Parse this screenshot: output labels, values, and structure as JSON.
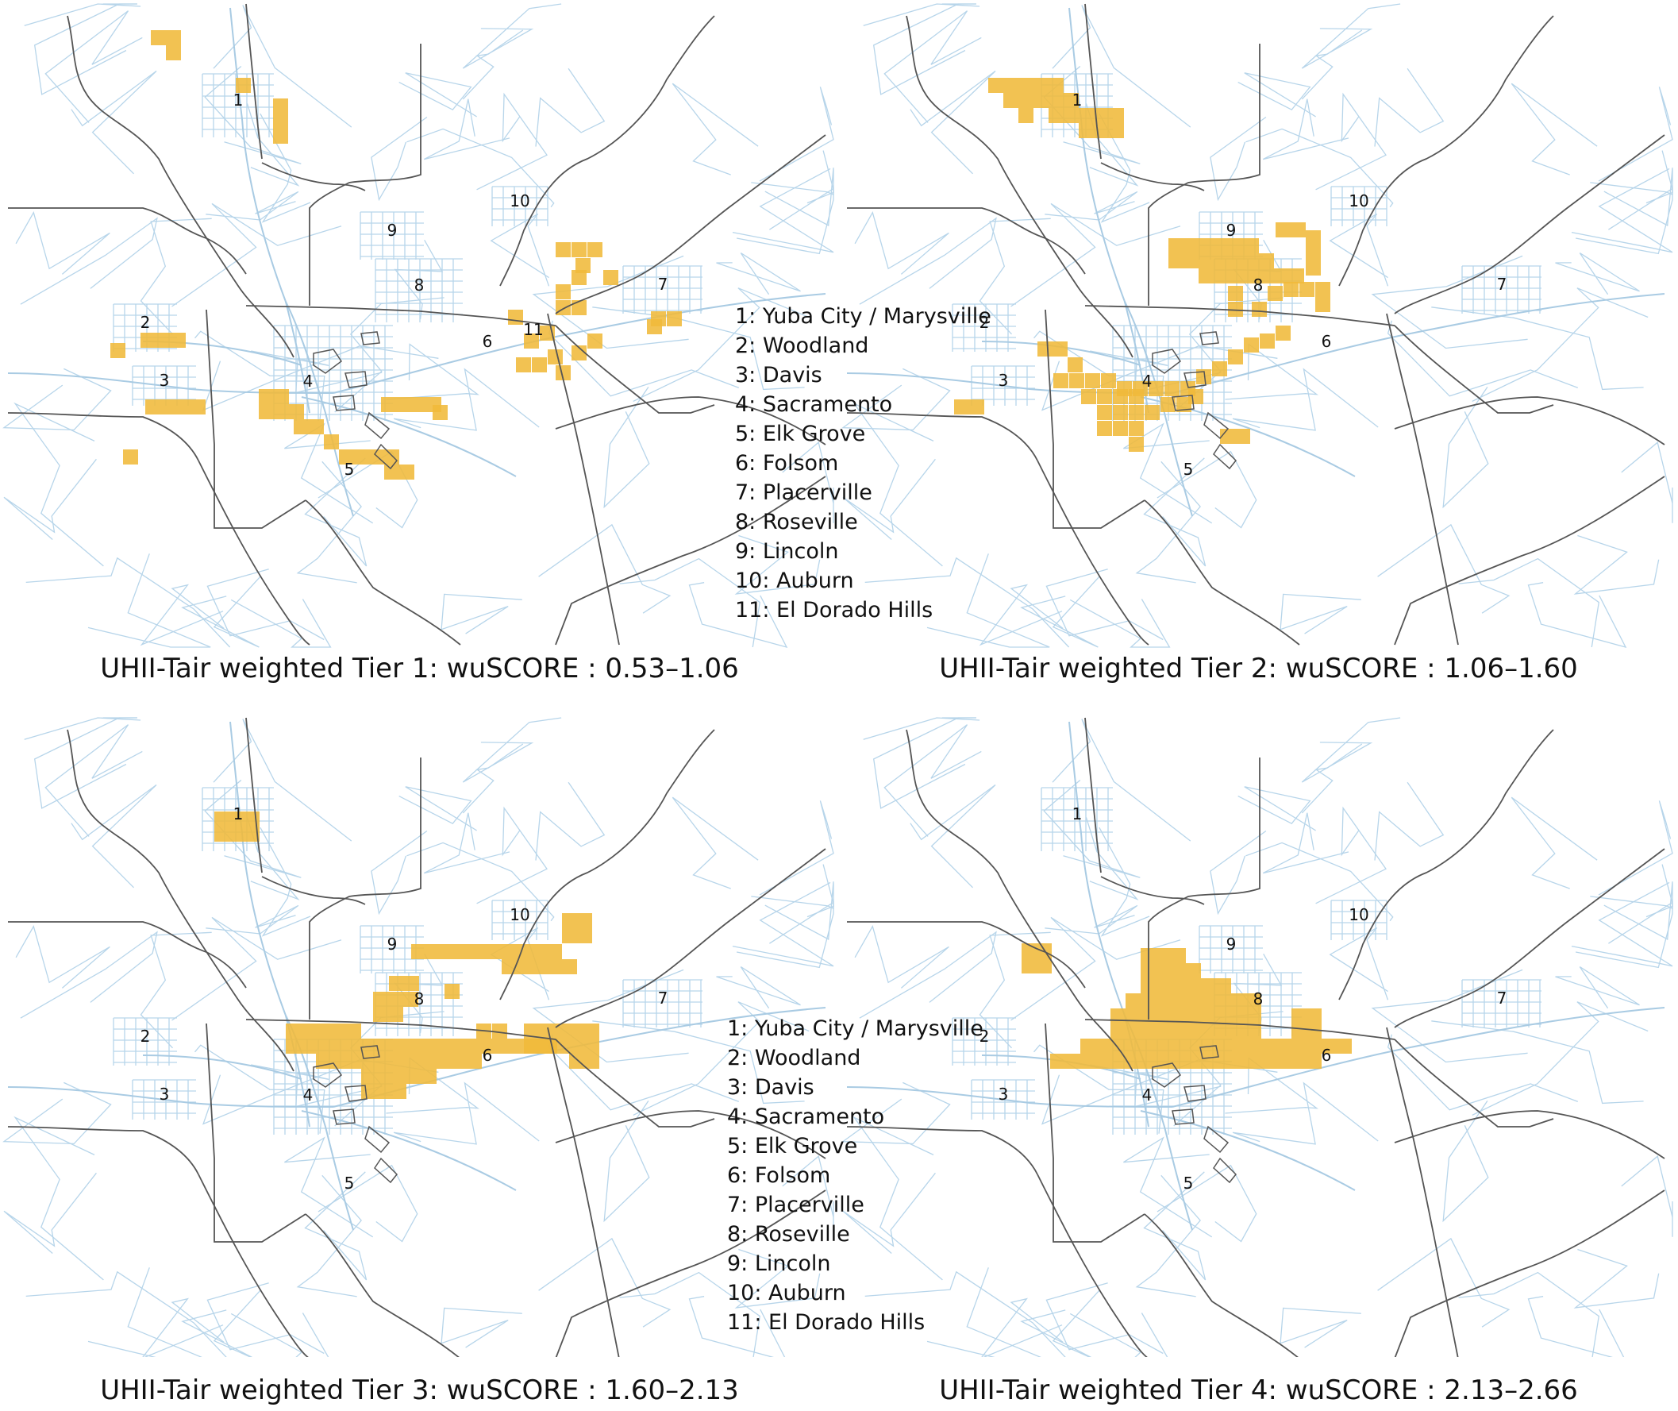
{
  "panels": [
    {
      "caption": "UHII-Tair weighted Tier 1: wuSCORE : 0.53–1.06",
      "tier": 1,
      "range": [
        0.53,
        1.06
      ]
    },
    {
      "caption": "UHII-Tair weighted Tier 2: wuSCORE : 1.06–1.60",
      "tier": 2,
      "range": [
        1.06,
        1.6
      ]
    },
    {
      "caption": "UHII-Tair weighted Tier 3: wuSCORE : 1.60–2.13",
      "tier": 3,
      "range": [
        1.6,
        2.13
      ]
    },
    {
      "caption": "UHII-Tair weighted Tier 4: wuSCORE : 2.13–2.66",
      "tier": 4,
      "range": [
        2.13,
        2.66
      ]
    }
  ],
  "legend": [
    "1: Yuba City / Marysville",
    "2: Woodland",
    "3: Davis",
    "4: Sacramento",
    "5: Elk Grove",
    "6: Folsom",
    "7: Placerville",
    "8: Roseville",
    "9: Lincoln",
    "10: Auburn",
    "11: El Dorado Hills"
  ],
  "city_numbers": [
    "1",
    "2",
    "3",
    "4",
    "5",
    "6",
    "7",
    "8",
    "9",
    "10",
    "11"
  ],
  "colors": {
    "highlight": "#f0b93a",
    "roads": "#b7d5ea",
    "boundaries": "#555555",
    "background": "#ffffff"
  }
}
